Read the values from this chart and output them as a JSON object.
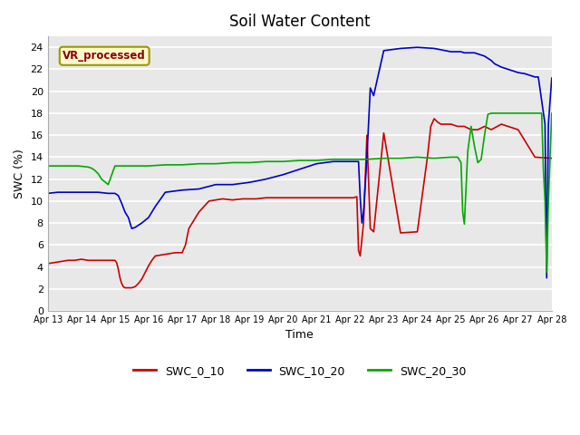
{
  "title": "Soil Water Content",
  "xlabel": "Time",
  "ylabel": "SWC (%)",
  "ylim": [
    0,
    25
  ],
  "yticks": [
    0,
    2,
    4,
    6,
    8,
    10,
    12,
    14,
    16,
    18,
    20,
    22,
    24
  ],
  "annotation_text": "VR_processed",
  "annotation_color": "#8B0000",
  "annotation_bg": "#FFFACD",
  "annotation_border": "#999900",
  "plot_bg_color": "#E8E8E8",
  "fig_bg_color": "#FFFFFF",
  "line_colors": {
    "SWC_0_10": "#CC0000",
    "SWC_10_20": "#0000CC",
    "SWC_20_30": "#00AA00"
  },
  "xtick_labels": [
    "Apr 13",
    "Apr 14",
    "Apr 15",
    "Apr 16",
    "Apr 17",
    "Apr 18",
    "Apr 19",
    "Apr 20",
    "Apr 21",
    "Apr 22",
    "Apr 23",
    "Apr 24",
    "Apr 25",
    "Apr 26",
    "Apr 27",
    "Apr 28"
  ],
  "swc_0_10_x": [
    0.0,
    0.2,
    0.4,
    0.6,
    0.8,
    1.0,
    1.2,
    1.4,
    1.6,
    1.8,
    2.0,
    2.05,
    2.1,
    2.15,
    2.2,
    2.25,
    2.3,
    2.4,
    2.5,
    2.6,
    2.7,
    2.8,
    2.9,
    3.0,
    3.1,
    3.2,
    3.4,
    3.6,
    3.8,
    4.0,
    4.1,
    4.2,
    4.3,
    4.4,
    4.5,
    4.8,
    5.0,
    5.2,
    5.5,
    5.8,
    6.0,
    6.2,
    6.5,
    7.0,
    7.5,
    8.0,
    8.5,
    9.0,
    9.1,
    9.2,
    9.25,
    9.3,
    9.4,
    9.5,
    9.6,
    9.7,
    10.0,
    10.5,
    11.0,
    11.3,
    11.4,
    11.5,
    11.6,
    11.7,
    11.8,
    12.0,
    12.2,
    12.4,
    12.6,
    12.8,
    13.0,
    13.2,
    13.5,
    14.0,
    14.5,
    15.0
  ],
  "swc_0_10_y": [
    4.3,
    4.4,
    4.5,
    4.6,
    4.6,
    4.7,
    4.6,
    4.6,
    4.6,
    4.6,
    4.6,
    4.4,
    3.8,
    3.0,
    2.5,
    2.2,
    2.1,
    2.1,
    2.1,
    2.2,
    2.5,
    2.9,
    3.5,
    4.1,
    4.6,
    5.0,
    5.1,
    5.2,
    5.3,
    5.3,
    6.0,
    7.5,
    8.0,
    8.5,
    9.0,
    10.0,
    10.1,
    10.2,
    10.1,
    10.2,
    10.2,
    10.2,
    10.3,
    10.3,
    10.3,
    10.3,
    10.3,
    10.3,
    10.3,
    10.4,
    5.5,
    5.0,
    8.0,
    16.0,
    7.5,
    7.2,
    16.2,
    7.1,
    7.2,
    14.0,
    16.8,
    17.5,
    17.2,
    17.0,
    17.0,
    17.0,
    16.8,
    16.8,
    16.5,
    16.5,
    16.8,
    16.5,
    17.0,
    16.5,
    14.0,
    13.9
  ],
  "swc_10_20_x": [
    0.0,
    0.3,
    0.6,
    0.9,
    1.2,
    1.5,
    1.8,
    2.0,
    2.1,
    2.2,
    2.3,
    2.4,
    2.5,
    2.6,
    2.8,
    3.0,
    3.2,
    3.5,
    4.0,
    4.5,
    5.0,
    5.5,
    6.0,
    6.5,
    7.0,
    7.5,
    8.0,
    8.5,
    9.0,
    9.1,
    9.2,
    9.25,
    9.3,
    9.35,
    9.4,
    9.5,
    9.6,
    9.7,
    10.0,
    10.5,
    11.0,
    11.5,
    12.0,
    12.2,
    12.3,
    12.4,
    12.5,
    12.6,
    12.7,
    12.8,
    12.9,
    13.0,
    13.1,
    13.2,
    13.3,
    13.5,
    14.0,
    14.2,
    14.3,
    14.4,
    14.5,
    14.6,
    14.8,
    14.85,
    14.9,
    15.0
  ],
  "swc_10_20_y": [
    10.7,
    10.8,
    10.8,
    10.8,
    10.8,
    10.8,
    10.7,
    10.7,
    10.5,
    9.8,
    9.0,
    8.5,
    7.5,
    7.6,
    8.0,
    8.5,
    9.5,
    10.8,
    11.0,
    11.1,
    11.5,
    11.5,
    11.7,
    12.0,
    12.4,
    12.9,
    13.4,
    13.6,
    13.6,
    13.6,
    13.6,
    13.6,
    10.3,
    8.0,
    9.0,
    14.0,
    20.3,
    19.6,
    23.7,
    23.9,
    24.0,
    23.9,
    23.6,
    23.6,
    23.6,
    23.5,
    23.5,
    23.5,
    23.5,
    23.4,
    23.3,
    23.2,
    23.0,
    22.8,
    22.5,
    22.2,
    21.7,
    21.6,
    21.5,
    21.4,
    21.3,
    21.3,
    17.0,
    3.0,
    17.0,
    21.2
  ],
  "swc_20_30_x": [
    0.0,
    0.3,
    0.6,
    0.9,
    1.2,
    1.3,
    1.4,
    1.5,
    1.6,
    1.8,
    2.0,
    2.5,
    3.0,
    3.5,
    4.0,
    4.5,
    5.0,
    5.5,
    6.0,
    6.5,
    7.0,
    7.5,
    8.0,
    8.5,
    9.0,
    9.5,
    10.0,
    10.5,
    11.0,
    11.5,
    12.0,
    12.1,
    12.2,
    12.3,
    12.35,
    12.4,
    12.5,
    12.6,
    12.7,
    12.8,
    12.9,
    13.0,
    13.1,
    13.2,
    13.5,
    14.0,
    14.5,
    14.6,
    14.7,
    14.75,
    14.8,
    14.85,
    14.9,
    15.0
  ],
  "swc_20_30_y": [
    13.2,
    13.2,
    13.2,
    13.2,
    13.1,
    13.0,
    12.8,
    12.5,
    12.0,
    11.5,
    13.2,
    13.2,
    13.2,
    13.3,
    13.3,
    13.4,
    13.4,
    13.5,
    13.5,
    13.6,
    13.6,
    13.7,
    13.7,
    13.8,
    13.8,
    13.8,
    13.9,
    13.9,
    14.0,
    13.9,
    14.0,
    14.0,
    14.0,
    13.5,
    9.0,
    7.9,
    14.5,
    16.8,
    15.0,
    13.5,
    13.8,
    16.0,
    17.9,
    18.0,
    18.0,
    18.0,
    18.0,
    18.0,
    18.0,
    13.0,
    10.0,
    3.5,
    10.0,
    18.0
  ]
}
